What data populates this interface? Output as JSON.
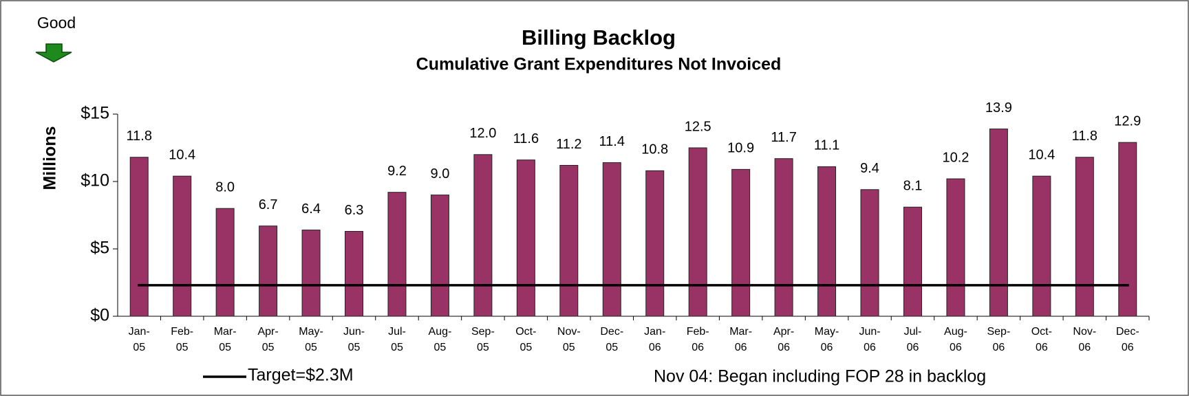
{
  "chart_data": {
    "type": "bar",
    "title": "Billing Backlog",
    "subtitle": "Cumulative Grant Expenditures Not Invoiced",
    "ylabel": "Millions",
    "corner_note": "Good",
    "annotation": "Nov 04: Began including FOP 28 in backlog",
    "color": "#993366",
    "categories": [
      [
        "Jan-",
        "05"
      ],
      [
        "Feb-",
        "05"
      ],
      [
        "Mar-",
        "05"
      ],
      [
        "Apr-",
        "05"
      ],
      [
        "May-",
        "05"
      ],
      [
        "Jun-",
        "05"
      ],
      [
        "Jul-",
        "05"
      ],
      [
        "Aug-",
        "05"
      ],
      [
        "Sep-",
        "05"
      ],
      [
        "Oct-",
        "05"
      ],
      [
        "Nov-",
        "05"
      ],
      [
        "Dec-",
        "05"
      ],
      [
        "Jan-",
        "06"
      ],
      [
        "Feb-",
        "06"
      ],
      [
        "Mar-",
        "06"
      ],
      [
        "Apr-",
        "06"
      ],
      [
        "May-",
        "06"
      ],
      [
        "Jun-",
        "06"
      ],
      [
        "Jul-",
        "06"
      ],
      [
        "Aug-",
        "06"
      ],
      [
        "Sep-",
        "06"
      ],
      [
        "Oct-",
        "06"
      ],
      [
        "Nov-",
        "06"
      ],
      [
        "Dec-",
        "06"
      ]
    ],
    "values": [
      11.8,
      10.4,
      8.0,
      6.7,
      6.4,
      6.3,
      9.2,
      9.0,
      12.0,
      11.6,
      11.2,
      11.4,
      10.8,
      12.5,
      10.9,
      11.7,
      11.1,
      9.4,
      8.1,
      10.2,
      13.9,
      10.4,
      11.8,
      12.9
    ],
    "value_labels": [
      "11.8",
      "10.4",
      "8.0",
      "6.7",
      "6.4",
      "6.3",
      "9.2",
      "9.0",
      "12.0",
      "11.6",
      "11.2",
      "11.4",
      "10.8",
      "12.5",
      "10.9",
      "11.7",
      "11.1",
      "9.4",
      "8.1",
      "10.2",
      "13.9",
      "10.4",
      "11.8",
      "12.9"
    ],
    "target": {
      "value": 2.3,
      "label": "Target=$2.3M"
    },
    "ylim": [
      0,
      15
    ],
    "yticks": [
      {
        "value": 0,
        "label": "$0"
      },
      {
        "value": 5,
        "label": "$5"
      },
      {
        "value": 10,
        "label": "$10"
      },
      {
        "value": 15,
        "label": "$15"
      }
    ]
  }
}
